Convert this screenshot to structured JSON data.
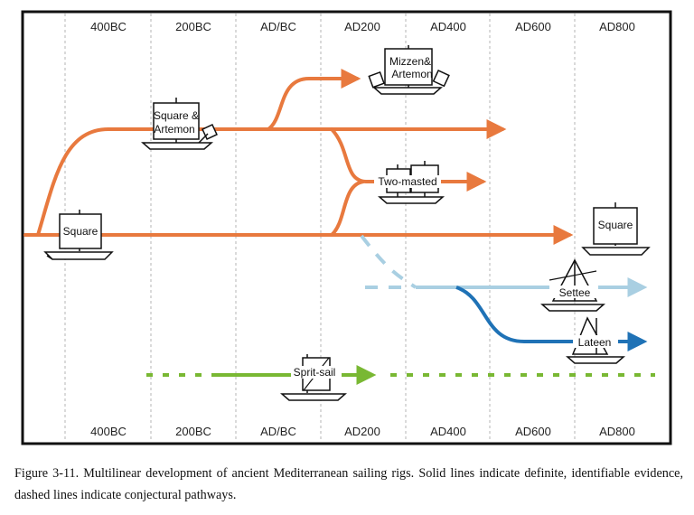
{
  "timeline": {
    "top_labels": [
      "400BC",
      "200BC",
      "AD/BC",
      "AD200",
      "AD400",
      "AD600",
      "AD800"
    ],
    "bottom_labels": [
      "400BC",
      "200BC",
      "AD/BC",
      "AD200",
      "AD400",
      "AD600",
      "AD800"
    ]
  },
  "ships": {
    "square_start": "Square",
    "square_artemon": [
      "Square &",
      "Artemon"
    ],
    "mizzen_artemon": [
      "Mizzen&",
      "Artemon"
    ],
    "two_masted": "Two-masted",
    "square_end": "Square",
    "settee": "Settee",
    "lateen": "Lateen",
    "sprit_sail": "Sprit-sail"
  },
  "colors": {
    "orange": "#e8793e",
    "light_blue": "#a9cfe2",
    "dark_blue": "#1f72b6",
    "green": "#79b833",
    "frame": "#111111"
  },
  "caption": "Figure 3-11. Multilinear development of ancient Mediterranean sailing rigs. Solid lines indicate definite, identifiable evidence, dashed lines indicate conjectural pathways."
}
